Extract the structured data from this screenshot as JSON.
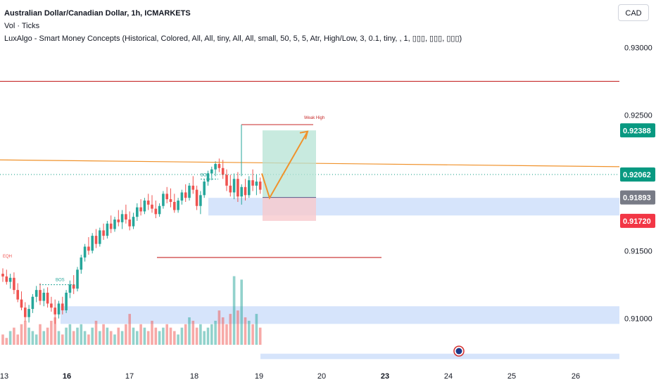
{
  "legend": {
    "symbol": "Australian Dollar/Canadian Dollar, 1h, ICMARKETS",
    "volume": "Vol · Ticks",
    "indicator": "LuxAlgo - Smart Money Concepts (Historical, Colored, All, All, tiny, All, All, small, 50, 5, 5, Atr, High/Low, 3, 0.1, tiny, , 1, ▯▯▯, ▯▯▯, ▯▯▯)"
  },
  "currency_button": "CAD",
  "colors": {
    "up": "#26a69a",
    "down": "#ef5350",
    "blue_zone": "#d6e4fb",
    "orange": "#f0922b",
    "red_line": "#c62828",
    "price_green": "#089981",
    "price_gray": "#787b86",
    "price_red": "#f23645"
  },
  "chart_data": {
    "type": "candlestick",
    "symbol": "AUD/CAD",
    "interval": "1h",
    "y_axis": {
      "ticks": [
        "0.93000",
        "0.92500",
        "0.91500",
        "0.91000"
      ],
      "tick_values": [
        0.93,
        0.925,
        0.915,
        0.91
      ],
      "range": [
        0.9065,
        0.9335
      ]
    },
    "x_axis": {
      "ticks": [
        "13",
        "16",
        "17",
        "18",
        "19",
        "20",
        "23",
        "24",
        "25",
        "26"
      ],
      "bold": [
        "16",
        "23"
      ]
    },
    "price_labels": [
      {
        "value": 0.92388,
        "text": "0.92388",
        "color": "#089981"
      },
      {
        "value": 0.92062,
        "text": "0.92062",
        "color": "#089981"
      },
      {
        "value": 0.91893,
        "text": "0.91893",
        "color": "#787b86"
      },
      {
        "value": 0.9172,
        "text": "0.91720",
        "color": "#f23645"
      }
    ],
    "annotations": [
      {
        "text": "Weak High"
      },
      {
        "text": "BOS"
      },
      {
        "text": "BOS"
      },
      {
        "text": "EQH"
      }
    ],
    "horizontal_levels": [
      {
        "name": "upper-resistance",
        "value": 0.9275
      },
      {
        "name": "lower-resistance",
        "value": 0.9145
      }
    ],
    "trend_line": {
      "from_value": 0.9217,
      "to_value": 0.9212
    },
    "position": {
      "entry": 0.91893,
      "target": 0.92388,
      "stop": 0.9172
    },
    "projection": [
      0.9207,
      0.9189,
      0.9238
    ],
    "zones": [
      {
        "top": 0.9189,
        "bottom": 0.9176
      },
      {
        "top": 0.9109,
        "bottom": 0.9096
      },
      {
        "top": 0.9074,
        "bottom": 0.907
      }
    ],
    "candles": [
      {
        "o": 0.9133,
        "h": 0.9137,
        "l": 0.9127,
        "c": 0.9131
      },
      {
        "o": 0.9131,
        "h": 0.9136,
        "l": 0.9125,
        "c": 0.9127
      },
      {
        "o": 0.9127,
        "h": 0.9133,
        "l": 0.9122,
        "c": 0.913
      },
      {
        "o": 0.913,
        "h": 0.9134,
        "l": 0.9118,
        "c": 0.9121
      },
      {
        "o": 0.9121,
        "h": 0.9126,
        "l": 0.9112,
        "c": 0.9114
      },
      {
        "o": 0.9114,
        "h": 0.912,
        "l": 0.9106,
        "c": 0.9108
      },
      {
        "o": 0.9108,
        "h": 0.9112,
        "l": 0.9098,
        "c": 0.9101
      },
      {
        "o": 0.9101,
        "h": 0.911,
        "l": 0.9097,
        "c": 0.9107
      },
      {
        "o": 0.9107,
        "h": 0.9118,
        "l": 0.9104,
        "c": 0.9116
      },
      {
        "o": 0.9116,
        "h": 0.9124,
        "l": 0.9112,
        "c": 0.9121
      },
      {
        "o": 0.9121,
        "h": 0.9126,
        "l": 0.911,
        "c": 0.9113
      },
      {
        "o": 0.9113,
        "h": 0.9122,
        "l": 0.9109,
        "c": 0.9119
      },
      {
        "o": 0.9119,
        "h": 0.9123,
        "l": 0.9108,
        "c": 0.9111
      },
      {
        "o": 0.9111,
        "h": 0.9116,
        "l": 0.9105,
        "c": 0.9108
      },
      {
        "o": 0.9108,
        "h": 0.9114,
        "l": 0.9096,
        "c": 0.9103
      },
      {
        "o": 0.9103,
        "h": 0.9113,
        "l": 0.91,
        "c": 0.9111
      },
      {
        "o": 0.9111,
        "h": 0.9116,
        "l": 0.9103,
        "c": 0.9106
      },
      {
        "o": 0.9106,
        "h": 0.9121,
        "l": 0.9104,
        "c": 0.9119
      },
      {
        "o": 0.9119,
        "h": 0.9128,
        "l": 0.9115,
        "c": 0.9125
      },
      {
        "o": 0.9125,
        "h": 0.9132,
        "l": 0.9118,
        "c": 0.9122
      },
      {
        "o": 0.9122,
        "h": 0.9138,
        "l": 0.912,
        "c": 0.9136
      },
      {
        "o": 0.9136,
        "h": 0.9147,
        "l": 0.9133,
        "c": 0.9145
      },
      {
        "o": 0.9145,
        "h": 0.9155,
        "l": 0.9142,
        "c": 0.9153
      },
      {
        "o": 0.9153,
        "h": 0.916,
        "l": 0.9147,
        "c": 0.915
      },
      {
        "o": 0.915,
        "h": 0.9163,
        "l": 0.9148,
        "c": 0.9161
      },
      {
        "o": 0.9161,
        "h": 0.9166,
        "l": 0.9152,
        "c": 0.9155
      },
      {
        "o": 0.9155,
        "h": 0.9167,
        "l": 0.9153,
        "c": 0.9165
      },
      {
        "o": 0.9165,
        "h": 0.917,
        "l": 0.9158,
        "c": 0.9161
      },
      {
        "o": 0.9161,
        "h": 0.9172,
        "l": 0.9159,
        "c": 0.917
      },
      {
        "o": 0.917,
        "h": 0.9176,
        "l": 0.9163,
        "c": 0.9166
      },
      {
        "o": 0.9166,
        "h": 0.9175,
        "l": 0.9164,
        "c": 0.9173
      },
      {
        "o": 0.9173,
        "h": 0.918,
        "l": 0.9168,
        "c": 0.9171
      },
      {
        "o": 0.9171,
        "h": 0.918,
        "l": 0.9166,
        "c": 0.9177
      },
      {
        "o": 0.9177,
        "h": 0.9184,
        "l": 0.917,
        "c": 0.9173
      },
      {
        "o": 0.9173,
        "h": 0.9179,
        "l": 0.9165,
        "c": 0.9168
      },
      {
        "o": 0.9168,
        "h": 0.9178,
        "l": 0.9166,
        "c": 0.9175
      },
      {
        "o": 0.9175,
        "h": 0.9185,
        "l": 0.9172,
        "c": 0.9182
      },
      {
        "o": 0.9182,
        "h": 0.9188,
        "l": 0.9176,
        "c": 0.9179
      },
      {
        "o": 0.9179,
        "h": 0.9189,
        "l": 0.9177,
        "c": 0.9187
      },
      {
        "o": 0.9187,
        "h": 0.9192,
        "l": 0.918,
        "c": 0.9184
      },
      {
        "o": 0.9184,
        "h": 0.9191,
        "l": 0.9178,
        "c": 0.9181
      },
      {
        "o": 0.9181,
        "h": 0.9187,
        "l": 0.9174,
        "c": 0.9177
      },
      {
        "o": 0.9177,
        "h": 0.9185,
        "l": 0.9175,
        "c": 0.9183
      },
      {
        "o": 0.9183,
        "h": 0.9194,
        "l": 0.9181,
        "c": 0.9192
      },
      {
        "o": 0.9192,
        "h": 0.9197,
        "l": 0.9185,
        "c": 0.9188
      },
      {
        "o": 0.9188,
        "h": 0.9196,
        "l": 0.9182,
        "c": 0.9186
      },
      {
        "o": 0.9186,
        "h": 0.9192,
        "l": 0.9178,
        "c": 0.918
      },
      {
        "o": 0.918,
        "h": 0.9189,
        "l": 0.9178,
        "c": 0.9187
      },
      {
        "o": 0.9187,
        "h": 0.9195,
        "l": 0.9184,
        "c": 0.9193
      },
      {
        "o": 0.9193,
        "h": 0.9199,
        "l": 0.9186,
        "c": 0.9189
      },
      {
        "o": 0.9189,
        "h": 0.92,
        "l": 0.9187,
        "c": 0.9198
      },
      {
        "o": 0.9198,
        "h": 0.9205,
        "l": 0.9192,
        "c": 0.9195
      },
      {
        "o": 0.9195,
        "h": 0.9198,
        "l": 0.918,
        "c": 0.9183
      },
      {
        "o": 0.9183,
        "h": 0.9194,
        "l": 0.9177,
        "c": 0.9191
      },
      {
        "o": 0.9191,
        "h": 0.9203,
        "l": 0.9189,
        "c": 0.9201
      },
      {
        "o": 0.9201,
        "h": 0.9209,
        "l": 0.9198,
        "c": 0.9207
      },
      {
        "o": 0.9207,
        "h": 0.9212,
        "l": 0.9202,
        "c": 0.921
      },
      {
        "o": 0.921,
        "h": 0.9216,
        "l": 0.9205,
        "c": 0.9214
      },
      {
        "o": 0.9214,
        "h": 0.9218,
        "l": 0.9208,
        "c": 0.9211
      },
      {
        "o": 0.9211,
        "h": 0.9217,
        "l": 0.9203,
        "c": 0.9206
      },
      {
        "o": 0.9206,
        "h": 0.921,
        "l": 0.9194,
        "c": 0.9198
      },
      {
        "o": 0.9198,
        "h": 0.9206,
        "l": 0.919,
        "c": 0.9193
      },
      {
        "o": 0.9193,
        "h": 0.9207,
        "l": 0.9188,
        "c": 0.9203
      },
      {
        "o": 0.9203,
        "h": 0.9208,
        "l": 0.9186,
        "c": 0.919
      },
      {
        "o": 0.919,
        "h": 0.9199,
        "l": 0.9184,
        "c": 0.9197
      },
      {
        "o": 0.9197,
        "h": 0.9203,
        "l": 0.9187,
        "c": 0.9191
      },
      {
        "o": 0.9191,
        "h": 0.9205,
        "l": 0.9189,
        "c": 0.9202
      },
      {
        "o": 0.9202,
        "h": 0.921,
        "l": 0.9194,
        "c": 0.9198
      },
      {
        "o": 0.9198,
        "h": 0.9206,
        "l": 0.9191,
        "c": 0.9201
      },
      {
        "o": 0.9201,
        "h": 0.9204,
        "l": 0.9192,
        "c": 0.9195
      }
    ],
    "volumes": [
      3,
      2,
      4,
      5,
      3,
      6,
      7,
      5,
      4,
      3,
      6,
      4,
      5,
      7,
      8,
      4,
      3,
      5,
      6,
      4,
      5,
      6,
      4,
      3,
      5,
      7,
      4,
      6,
      5,
      4,
      3,
      5,
      4,
      6,
      9,
      5,
      4,
      6,
      5,
      4,
      7,
      5,
      4,
      5,
      6,
      5,
      4,
      3,
      5,
      6,
      8,
      7,
      5,
      6,
      4,
      5,
      6,
      7,
      10,
      8,
      6,
      9,
      20,
      10,
      19,
      8,
      7,
      6,
      9,
      5
    ]
  }
}
